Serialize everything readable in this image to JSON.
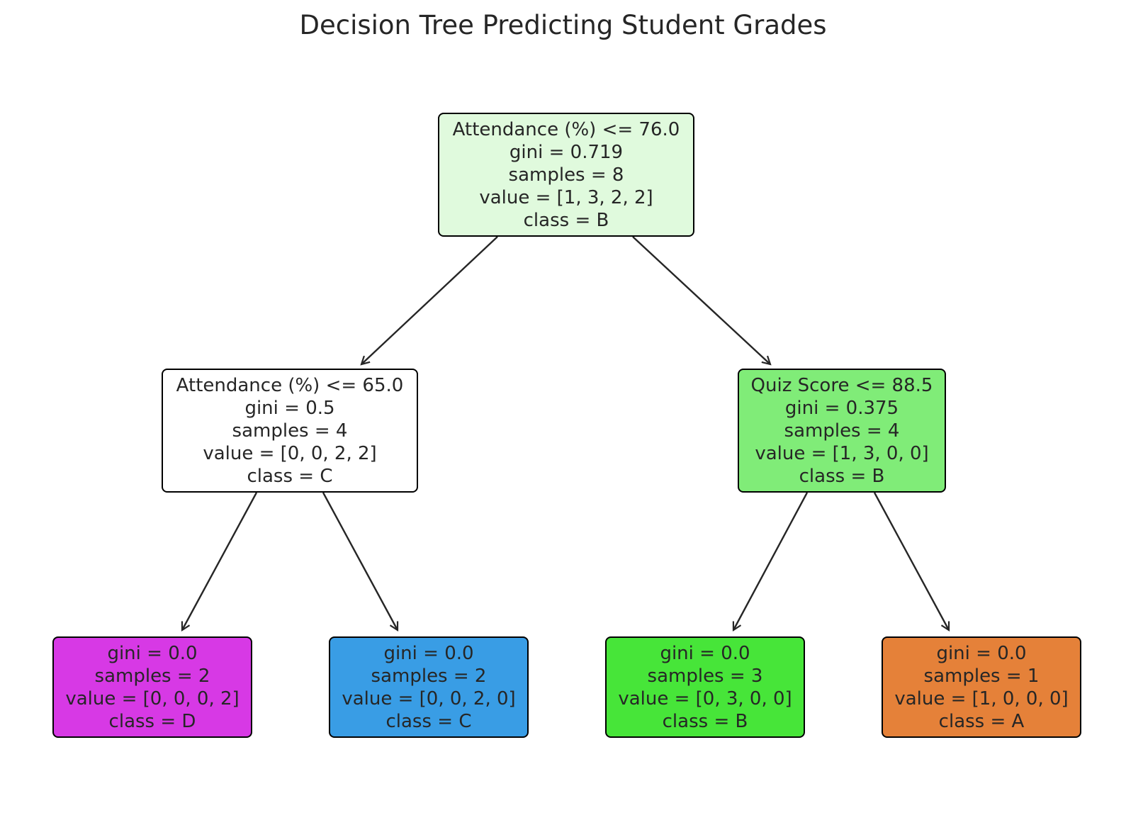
{
  "title": "Decision Tree Predicting Student Grades",
  "nodes": {
    "root": {
      "lines": [
        "Attendance (%) <= 76.0",
        "gini = 0.719",
        "samples = 8",
        "value = [1, 3, 2, 2]",
        "class = B"
      ],
      "fill": "#e0fadd"
    },
    "left": {
      "lines": [
        "Attendance (%) <= 65.0",
        "gini = 0.5",
        "samples = 4",
        "value = [0, 0, 2, 2]",
        "class = C"
      ],
      "fill": "#ffffff"
    },
    "right": {
      "lines": [
        "Quiz Score <= 88.5",
        "gini = 0.375",
        "samples = 4",
        "value = [1, 3, 0, 0]",
        "class = B"
      ],
      "fill": "#80ec78"
    },
    "leaf_d": {
      "lines": [
        "gini = 0.0",
        "samples = 2",
        "value = [0, 0, 0, 2]",
        "class = D"
      ],
      "fill": "#d739e5"
    },
    "leaf_c": {
      "lines": [
        "gini = 0.0",
        "samples = 2",
        "value = [0, 0, 2, 0]",
        "class = C"
      ],
      "fill": "#399de5"
    },
    "leaf_b": {
      "lines": [
        "gini = 0.0",
        "samples = 3",
        "value = [0, 3, 0, 0]",
        "class = B"
      ],
      "fill": "#47e539"
    },
    "leaf_a": {
      "lines": [
        "gini = 0.0",
        "samples = 1",
        "value = [1, 0, 0, 0]",
        "class = A"
      ],
      "fill": "#e58139"
    }
  },
  "edges": [
    {
      "from": "root",
      "to": "left"
    },
    {
      "from": "root",
      "to": "right"
    },
    {
      "from": "left",
      "to": "leaf_d"
    },
    {
      "from": "left",
      "to": "leaf_c"
    },
    {
      "from": "right",
      "to": "leaf_b"
    },
    {
      "from": "right",
      "to": "leaf_a"
    }
  ],
  "colors": {
    "border": "#000000",
    "edge": "#262626",
    "text": "#262626"
  }
}
